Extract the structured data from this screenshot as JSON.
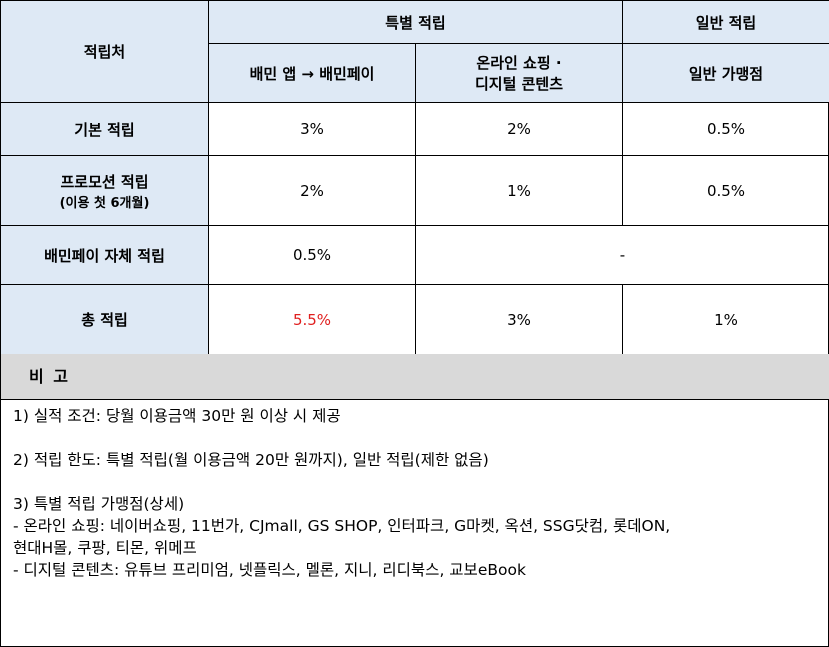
{
  "table": {
    "header": {
      "corner": "적립처",
      "special_group": "특별 적립",
      "general_group": "일반 적립",
      "col1": "배민 앱 → 배민페이",
      "col2_line1": "온라인 쇼핑 ·",
      "col2_line2": "디지털 콘텐츠",
      "col3": "일반 가맹점"
    },
    "rows": [
      {
        "label": "기본 적립",
        "c1": "3%",
        "c2": "2%",
        "c3": "0.5%"
      },
      {
        "label": "프로모션 적립",
        "sublabel": "(이용 첫 6개월)",
        "c1": "2%",
        "c2": "1%",
        "c3": "0.5%"
      },
      {
        "label": "배민페이 자체 적립",
        "c1": "0.5%",
        "c23": "-"
      },
      {
        "label": "총 적립",
        "c1": "5.5%",
        "c2": "3%",
        "c3": "1%"
      }
    ],
    "highlight_color": "#e02020",
    "header_bg": "#dee9f5"
  },
  "notes": {
    "title": "비 고",
    "lines": [
      "1) 실적 조건: 당월 이용금액 30만 원 이상 시 제공",
      "2) 적립 한도: 특별 적립(월 이용금액 20만 원까지), 일반 적립(제한 없음)",
      "3) 특별 적립 가맹점(상세)",
      "- 온라인 쇼핑: 네이버쇼핑, 11번가, CJmall, GS SHOP, 인터파크, G마켓, 옥션,  SSG닷컴, 롯데ON,",
      "현대H몰, 쿠팡, 티몬, 위메프",
      "- 디지털 콘텐츠: 유튜브 프리미엄, 넷플릭스, 멜론, 지니, 리디북스, 교보eBook"
    ]
  }
}
